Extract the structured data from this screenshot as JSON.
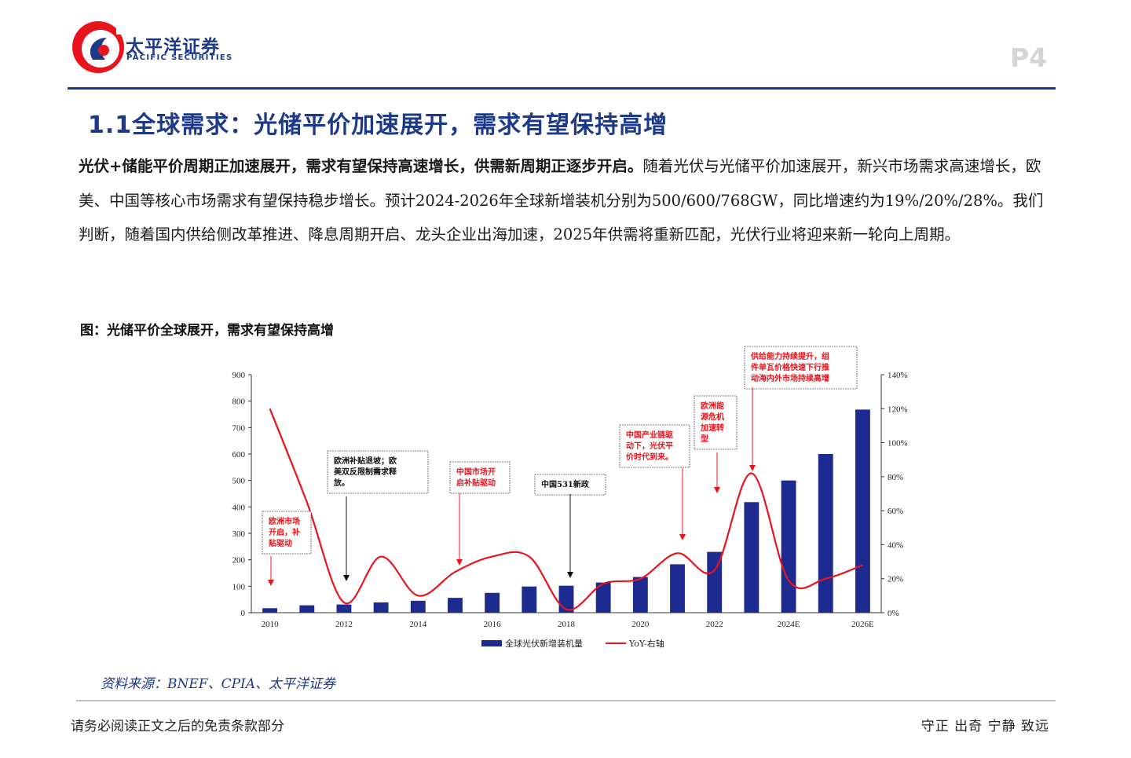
{
  "header": {
    "brand_cn": "太平洋证券",
    "brand_en": "PACIFIC SECURITIES",
    "page_number": "P4"
  },
  "section": {
    "title": "1.1全球需求：光储平价加速展开，需求有望保持高增"
  },
  "body": {
    "lead_bold": "光伏+储能平价周期正加速展开，需求有望保持高速增长，供需新周期正逐步开启。",
    "text": "随着光伏与光储平价加速展开，新兴市场需求高速增长，欧美、中国等核心市场需求有望保持稳步增长。预计2024-2026年全球新增装机分别为500/600/768GW，同比增速约为19%/20%/28%。我们判断，随着国内供给侧改革推进、降息周期开启、龙头企业出海加速，2025年供需将重新匹配，光伏行业将迎来新一轮向上周期。"
  },
  "figure": {
    "caption": "图：光储平价全球展开，需求有望保持高增",
    "source": "资料来源：BNEF、CPIA、太平洋证券"
  },
  "chart_data": {
    "type": "bar",
    "categories": [
      "2010",
      "2011",
      "2012",
      "2013",
      "2014",
      "2015",
      "2016",
      "2017",
      "2018",
      "2019",
      "2020",
      "2021",
      "2022",
      "2023",
      "2024E",
      "2025E",
      "2026E"
    ],
    "x_tick_labels": [
      "2010",
      "",
      "2012",
      "",
      "2014",
      "",
      "2016",
      "",
      "2018",
      "",
      "2020",
      "",
      "2022",
      "",
      "2024E",
      "",
      "2026E"
    ],
    "series": [
      {
        "name": "全球光伏新增装机量",
        "type": "bar",
        "axis": "left",
        "values": [
          17,
          28,
          31,
          39,
          45,
          56,
          75,
          99,
          102,
          114,
          135,
          183,
          230,
          418,
          500,
          600,
          768
        ]
      },
      {
        "name": "YoY-右轴",
        "type": "line",
        "axis": "right",
        "values": [
          120,
          65,
          6,
          33,
          10,
          24,
          33,
          33,
          2,
          17,
          20,
          35,
          25,
          82,
          19,
          20,
          28
        ]
      }
    ],
    "ylim": [
      0,
      900
    ],
    "yticks": [
      0,
      100,
      200,
      300,
      400,
      500,
      600,
      700,
      800,
      900
    ],
    "y2lim": [
      0,
      140
    ],
    "y2ticks": [
      "0%",
      "20%",
      "40%",
      "60%",
      "80%",
      "100%",
      "120%",
      "140%"
    ],
    "legend_position": "bottom",
    "colors": {
      "bar": "#1d2a8f",
      "line": "#e8141c",
      "note_red": "#e8141c",
      "note_black": "#111111"
    },
    "annotations": [
      {
        "lines": [
          "欧洲市场",
          "开启，补",
          "贴驱动"
        ],
        "color": "red",
        "year": "2010"
      },
      {
        "lines": [
          "欧洲补贴退坡；欧",
          "美双反限制需求释",
          "放。"
        ],
        "color": "black",
        "year": "2012"
      },
      {
        "lines": [
          "中国市场开",
          "启补贴驱动"
        ],
        "color": "red",
        "year": "2015"
      },
      {
        "lines": [
          "中国531新政"
        ],
        "color": "black",
        "year": "2018"
      },
      {
        "lines": [
          "中国产业链驱",
          "动下，光伏平",
          "价时代到来。"
        ],
        "color": "red",
        "year": "2021"
      },
      {
        "lines": [
          "欧洲能",
          "源危机",
          "加速转",
          "型"
        ],
        "color": "red",
        "year": "2022"
      },
      {
        "lines": [
          "供给能力持续提升，组",
          "件单瓦价格快速下行推",
          "动海内外市场持续高增"
        ],
        "color": "red",
        "year": "2023"
      }
    ]
  },
  "footer": {
    "disclaimer": "请务必阅读正文之后的免责条款部分",
    "motto": "守正 出奇 宁静 致远"
  }
}
